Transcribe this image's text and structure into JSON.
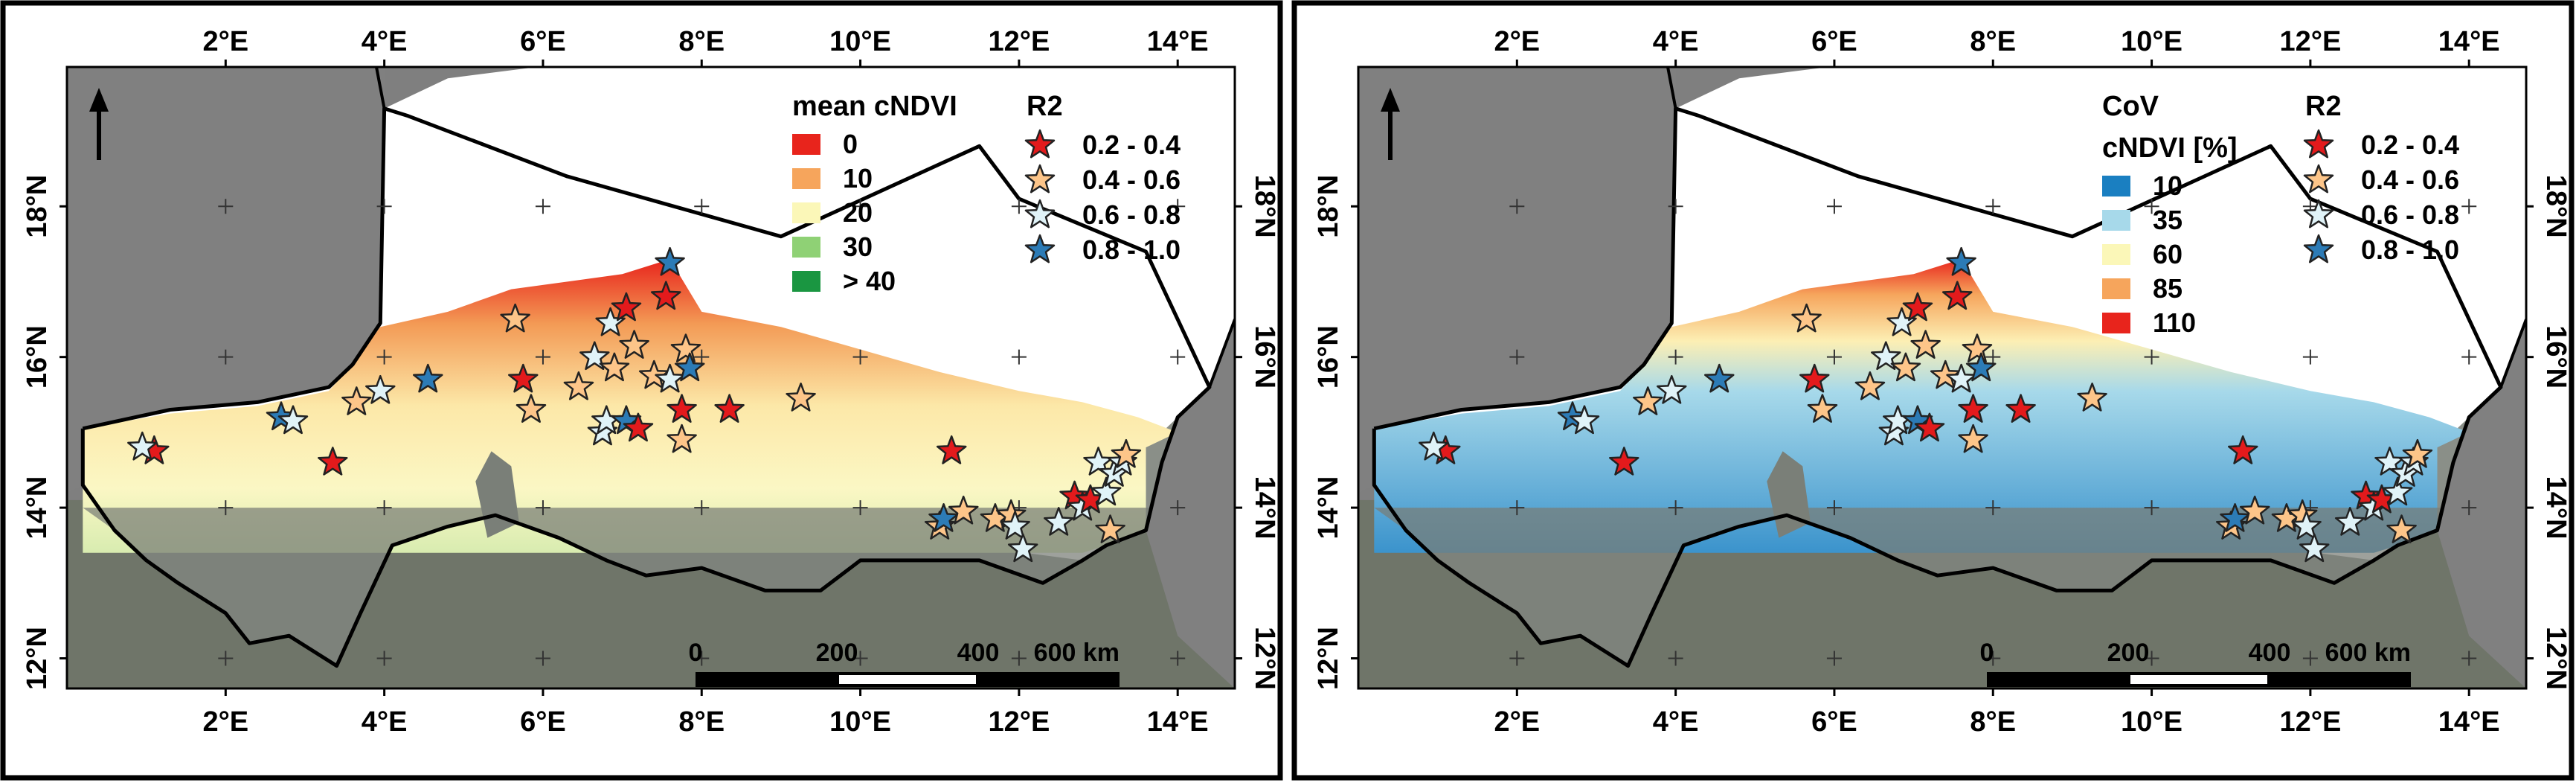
{
  "panels": [
    {
      "id": "mean",
      "legend_title_lines": [
        "mean cNDVI"
      ],
      "classes": [
        {
          "label": "0",
          "color": "#e8241c"
        },
        {
          "label": "10",
          "color": "#f6a55c"
        },
        {
          "label": "20",
          "color": "#fbf7b8"
        },
        {
          "label": "30",
          "color": "#8fd175"
        },
        {
          "label": "> 40",
          "color": "#1a9641"
        }
      ]
    },
    {
      "id": "cov",
      "legend_title_lines": [
        "CoV",
        "cNDVI [%]"
      ],
      "classes": [
        {
          "label": "10",
          "color": "#1a7fc1"
        },
        {
          "label": "35",
          "color": "#a7d9ea"
        },
        {
          "label": "60",
          "color": "#fbf7b8"
        },
        {
          "label": "85",
          "color": "#f6a55c"
        },
        {
          "label": "110",
          "color": "#e8241c"
        }
      ]
    }
  ],
  "r2_legend": {
    "title": "R2",
    "classes": [
      {
        "label": "0.2 - 0.4",
        "color": "#e31a1c"
      },
      {
        "label": "0.4 - 0.6",
        "color": "#fdc589"
      },
      {
        "label": "0.6 - 0.8",
        "color": "#e0f3f8"
      },
      {
        "label": "0.8 - 1.0",
        "color": "#2c7bb6"
      }
    ]
  },
  "axes": {
    "lon_ticks": [
      "2°E",
      "4°E",
      "6°E",
      "8°E",
      "10°E",
      "12°E",
      "14°E"
    ],
    "lat_ticks": [
      "18°N",
      "16°N",
      "14°N",
      "12°N"
    ]
  },
  "scale_bar": {
    "labels": [
      "0",
      "200",
      "400",
      "600 km"
    ]
  },
  "stations": [
    {
      "lon": 1.1,
      "lat": 14.75,
      "r2": 1
    },
    {
      "lon": 0.95,
      "lat": 14.8,
      "r2": 3
    },
    {
      "lon": 2.7,
      "lat": 15.2,
      "r2": 4
    },
    {
      "lon": 2.85,
      "lat": 15.15,
      "r2": 3
    },
    {
      "lon": 3.35,
      "lat": 14.6,
      "r2": 1
    },
    {
      "lon": 3.65,
      "lat": 15.4,
      "r2": 2
    },
    {
      "lon": 3.95,
      "lat": 15.55,
      "r2": 3
    },
    {
      "lon": 4.55,
      "lat": 15.7,
      "r2": 4
    },
    {
      "lon": 5.65,
      "lat": 16.5,
      "r2": 2
    },
    {
      "lon": 5.75,
      "lat": 15.7,
      "r2": 1
    },
    {
      "lon": 5.85,
      "lat": 15.3,
      "r2": 2
    },
    {
      "lon": 6.45,
      "lat": 15.6,
      "r2": 2
    },
    {
      "lon": 6.65,
      "lat": 16.0,
      "r2": 3
    },
    {
      "lon": 6.75,
      "lat": 15.0,
      "r2": 3
    },
    {
      "lon": 6.8,
      "lat": 15.15,
      "r2": 3
    },
    {
      "lon": 6.85,
      "lat": 16.45,
      "r2": 3
    },
    {
      "lon": 6.9,
      "lat": 15.85,
      "r2": 2
    },
    {
      "lon": 7.05,
      "lat": 16.65,
      "r2": 1
    },
    {
      "lon": 7.05,
      "lat": 15.15,
      "r2": 4
    },
    {
      "lon": 7.15,
      "lat": 16.15,
      "r2": 2
    },
    {
      "lon": 7.2,
      "lat": 15.05,
      "r2": 1
    },
    {
      "lon": 7.4,
      "lat": 15.75,
      "r2": 2
    },
    {
      "lon": 7.55,
      "lat": 16.8,
      "r2": 1
    },
    {
      "lon": 7.6,
      "lat": 17.25,
      "r2": 4
    },
    {
      "lon": 7.6,
      "lat": 15.7,
      "r2": 3
    },
    {
      "lon": 7.75,
      "lat": 15.3,
      "r2": 1
    },
    {
      "lon": 7.75,
      "lat": 14.9,
      "r2": 2
    },
    {
      "lon": 7.8,
      "lat": 16.1,
      "r2": 2
    },
    {
      "lon": 7.85,
      "lat": 15.85,
      "r2": 4
    },
    {
      "lon": 8.35,
      "lat": 15.3,
      "r2": 1
    },
    {
      "lon": 9.25,
      "lat": 15.45,
      "r2": 2
    },
    {
      "lon": 11.0,
      "lat": 13.75,
      "r2": 2
    },
    {
      "lon": 11.05,
      "lat": 13.85,
      "r2": 4
    },
    {
      "lon": 11.15,
      "lat": 14.75,
      "r2": 1
    },
    {
      "lon": 11.3,
      "lat": 13.95,
      "r2": 2
    },
    {
      "lon": 11.7,
      "lat": 13.85,
      "r2": 2
    },
    {
      "lon": 11.9,
      "lat": 13.9,
      "r2": 2
    },
    {
      "lon": 11.95,
      "lat": 13.75,
      "r2": 3
    },
    {
      "lon": 12.05,
      "lat": 13.45,
      "r2": 3
    },
    {
      "lon": 12.5,
      "lat": 13.8,
      "r2": 3
    },
    {
      "lon": 12.7,
      "lat": 14.15,
      "r2": 1
    },
    {
      "lon": 12.8,
      "lat": 14.0,
      "r2": 3
    },
    {
      "lon": 12.9,
      "lat": 14.1,
      "r2": 1
    },
    {
      "lon": 13.0,
      "lat": 14.6,
      "r2": 3
    },
    {
      "lon": 13.1,
      "lat": 14.2,
      "r2": 3
    },
    {
      "lon": 13.15,
      "lat": 13.7,
      "r2": 2
    },
    {
      "lon": 13.2,
      "lat": 14.45,
      "r2": 3
    },
    {
      "lon": 13.3,
      "lat": 14.6,
      "r2": 3
    },
    {
      "lon": 13.35,
      "lat": 14.7,
      "r2": 2
    }
  ]
}
